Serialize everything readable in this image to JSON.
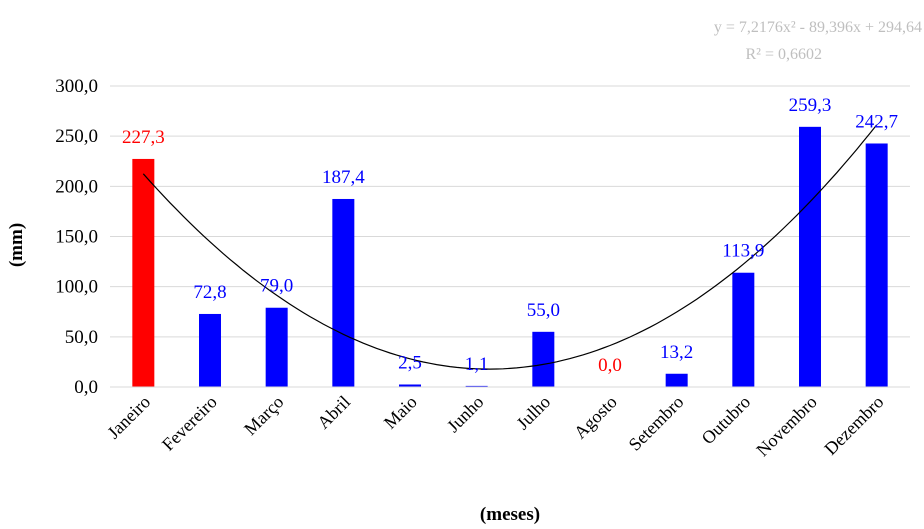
{
  "chart_data": {
    "type": "bar",
    "categories": [
      "Janeiro",
      "Fevereiro",
      "Março",
      "Abril",
      "Maio",
      "Junho",
      "Julho",
      "Agosto",
      "Setembro",
      "Outubro",
      "Novembro",
      "Dezembro"
    ],
    "values": [
      227.3,
      72.8,
      79.0,
      187.4,
      2.5,
      1.1,
      55.0,
      0.0,
      13.2,
      113.9,
      259.3,
      242.7
    ],
    "data_labels": [
      "227,3",
      "72,8",
      "79,0",
      "187,4",
      "2,5",
      "1,1",
      "55,0",
      "0,0",
      "13,2",
      "113,9",
      "259,3",
      "242,7"
    ],
    "highlight_indices": [
      0,
      7
    ],
    "ylim": [
      0,
      300
    ],
    "yticks": [
      0,
      50,
      100,
      150,
      200,
      250,
      300
    ],
    "ytick_labels": [
      "0,0",
      "50,0",
      "100,0",
      "150,0",
      "200,0",
      "250,0",
      "300,0"
    ],
    "xlabel": "(meses)",
    "ylabel": "(mm)",
    "grid": true,
    "trendline": {
      "type": "polynomial",
      "order": 2,
      "coefficients": [
        7.2176,
        -89.396,
        294.64
      ],
      "equation": "y = 7,2176x² - 89,396x + 294,64",
      "r_squared": "R² = 0,6602"
    },
    "colors": {
      "bar": "#0000ff",
      "highlight": "#ff0000",
      "grid": "#d9d9d9",
      "trend": "#000000",
      "trend_text": "#bfbfbf"
    }
  }
}
